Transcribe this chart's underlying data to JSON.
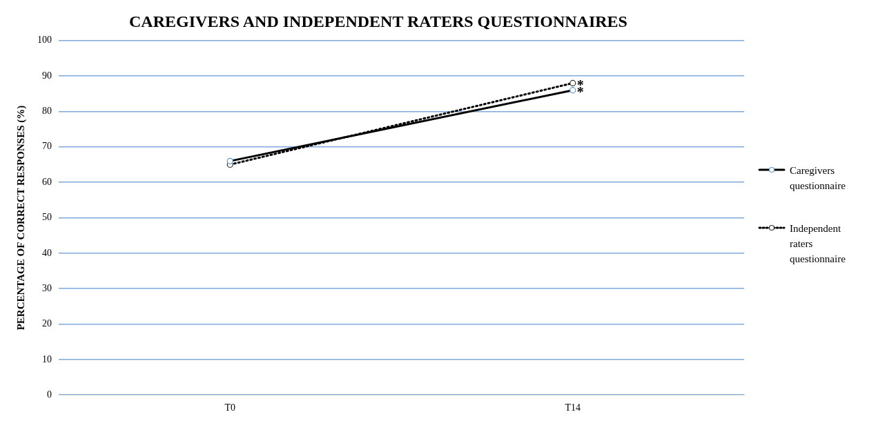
{
  "chart_data": {
    "type": "line",
    "title": "CAREGIVERS AND INDEPENDENT RATERS QUESTIONNAIRES",
    "ylabel": "PERCENTAGE OF CORRECT RESPONSES (%)",
    "categories": [
      "T0",
      "T14"
    ],
    "series": [
      {
        "name": "Caregivers questionnaire",
        "color": "#000000",
        "values": [
          66,
          86
        ],
        "line_style": "solid"
      },
      {
        "name": "Independent raters questionnaire",
        "color": "#000000",
        "values": [
          65,
          88
        ],
        "line_style": "dotted"
      }
    ],
    "marker": "circle",
    "annotations": [
      {
        "text": "*",
        "x": "T14",
        "y": 88
      },
      {
        "text": "*",
        "x": "T14",
        "y": 86
      }
    ],
    "ylim": [
      0,
      100
    ],
    "yticks": [
      0,
      10,
      20,
      30,
      40,
      50,
      60,
      70,
      80,
      90,
      100
    ],
    "grid": "y",
    "legend": "right"
  }
}
